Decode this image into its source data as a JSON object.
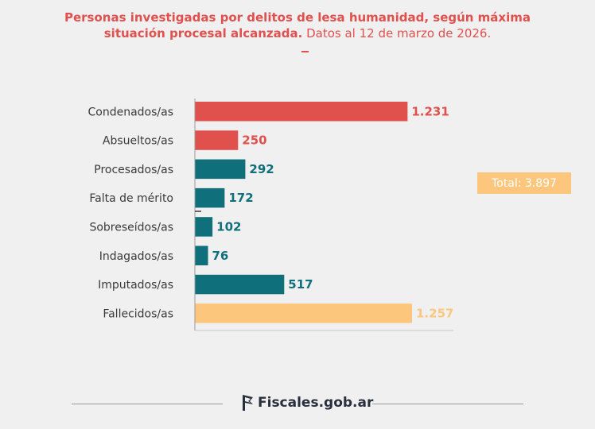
{
  "header": {
    "title_bold": "Personas investigadas por delitos de lesa humanidad, según máxima situación procesal alcanzada.",
    "title_light": "Datos al 12 de marzo de 2026."
  },
  "total_label": "Total: 3.897",
  "footer": {
    "logo_text": "Fiscales.gob.ar"
  },
  "colors": {
    "red": "#e0504d",
    "teal": "#0f6f7b",
    "orange": "#fcc77c"
  },
  "chart_data": {
    "type": "bar",
    "orientation": "horizontal",
    "categories": [
      "Condenados/as",
      "Absueltos/as",
      "Procesados/as",
      "Falta de mérito",
      "Sobreseídos/as",
      "Indagados/as",
      "Imputados/as",
      "Fallecidos/as"
    ],
    "values": [
      1231,
      250,
      292,
      172,
      102,
      76,
      517,
      1257
    ],
    "value_labels": [
      "1.231",
      "250",
      "292",
      "172",
      "102",
      "76",
      "517",
      "1.257"
    ],
    "bar_colors": [
      "#e0504d",
      "#e0504d",
      "#0f6f7b",
      "#0f6f7b",
      "#0f6f7b",
      "#0f6f7b",
      "#0f6f7b",
      "#fcc77c"
    ],
    "xlim": [
      0,
      1257
    ],
    "grid": false
  }
}
